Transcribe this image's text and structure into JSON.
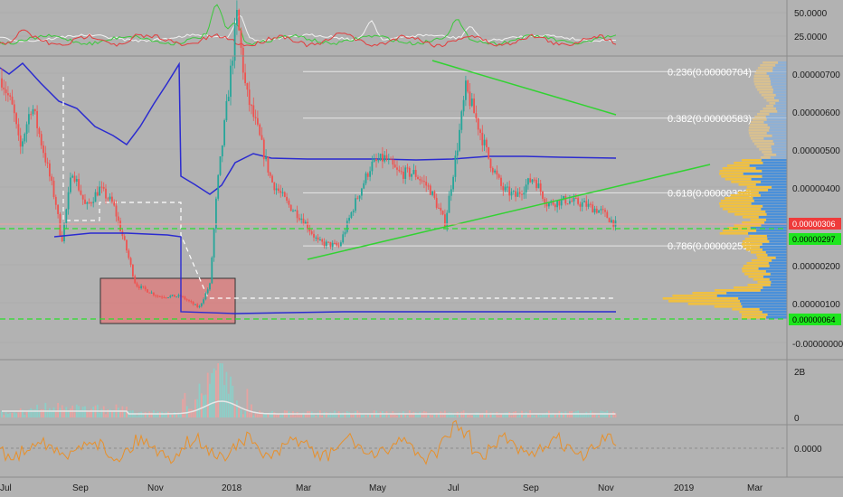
{
  "colors": {
    "background": "#b2b2b2",
    "axis_line": "#7a7a7a",
    "grid": "#a6a6a6",
    "candle_up": "#26a69a",
    "candle_down": "#ef5350",
    "moving_avg": "#2b2bd0",
    "trendline": "#32d232",
    "support_dashed": "#28e028",
    "white_dashed": "#ffffff",
    "fib_line": "#e6e6e6",
    "box_fill": "#e07a7a",
    "vp_orange": "#f0c040",
    "vp_blue": "#4a90d9",
    "price_tag_red": "#ef3b3b",
    "price_tag_green": "#1ee61e",
    "oscillator": "#e8902a",
    "ind_red": "#e23c3c",
    "ind_green": "#3cc83c",
    "ind_white": "#f2f2f2"
  },
  "price_axis": {
    "ticks": [
      "0.00000700",
      "0.00000600",
      "0.00000500",
      "0.00000400",
      "0.00000200",
      "0.00000100",
      "-0.00000000"
    ],
    "current_price_tag": "0.00000306",
    "support_tag_upper": "0.00000297",
    "support_tag_lower": "0.00000064"
  },
  "fib_levels": [
    {
      "label": "0.236(0.00000704)",
      "price": 7.04e-06
    },
    {
      "label": "0.382(0.00000583)",
      "price": 5.83e-06
    },
    {
      "label": "0.618(0.00000389)",
      "price": 3.89e-06
    },
    {
      "label": "0.786(0.00000251)",
      "price": 2.51e-06
    }
  ],
  "top_indicator": {
    "ticks": [
      "50.0000",
      "25.0000"
    ]
  },
  "volume_panel": {
    "ticks": [
      "2B",
      "0"
    ]
  },
  "oscillator_panel": {
    "ticks": [
      "0.0000"
    ]
  },
  "time_axis": {
    "labels": [
      "Jul",
      "Sep",
      "Nov",
      "2018",
      "Mar",
      "May",
      "Jul",
      "Sep",
      "Nov",
      "2019",
      "Mar"
    ]
  },
  "chart_data": [
    {
      "type": "line",
      "panel": "price",
      "x": [
        "2017-07",
        "2017-08",
        "2017-09",
        "2017-10",
        "2017-11",
        "2017-12",
        "2018-01",
        "2018-02",
        "2018-03",
        "2018-04",
        "2018-05",
        "2018-06",
        "2018-07",
        "2018-08",
        "2018-09",
        "2018-10",
        "2018-11"
      ],
      "series": [
        {
          "values": [
            7e-06,
            6.5e-06,
            3.8e-06,
            2.4e-06,
            1.5e-06,
            9e-07,
            8.5e-06,
            4e-06,
            3e-06,
            2.4e-06,
            5e-06,
            4.5e-06,
            6.5e-06,
            4e-06,
            3.8e-06,
            3.7e-06,
            3.06e-06
          ]
        }
      ],
      "fib_retracement_prices": [
        7.04e-06,
        5.83e-06,
        3.89e-06,
        2.51e-06
      ],
      "horizontal_support_prices": [
        2.97e-06,
        6.4e-07
      ]
    }
  ]
}
